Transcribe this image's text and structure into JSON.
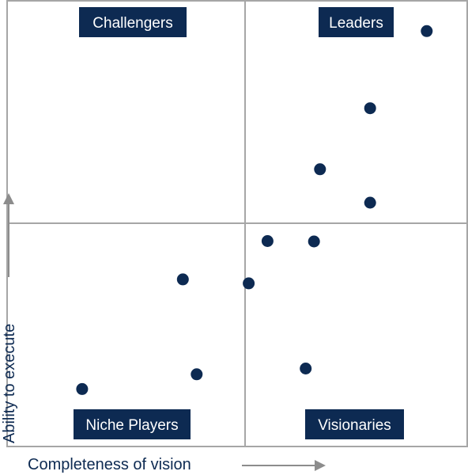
{
  "chart_data": {
    "type": "scatter",
    "title": "",
    "xlabel": "Completeness of vision",
    "ylabel": "Ability to execute",
    "xlim": [
      0,
      10
    ],
    "ylim": [
      0,
      10
    ],
    "quadrants": {
      "top_left": "Challengers",
      "top_right": "Leaders",
      "bottom_left": "Niche Players",
      "bottom_right": "Visionaries"
    },
    "points": [
      {
        "x": 9.12,
        "y": 9.32
      },
      {
        "x": 7.89,
        "y": 7.59
      },
      {
        "x": 6.8,
        "y": 6.22
      },
      {
        "x": 7.89,
        "y": 5.47
      },
      {
        "x": 5.66,
        "y": 4.61
      },
      {
        "x": 6.67,
        "y": 4.6
      },
      {
        "x": 5.25,
        "y": 3.66
      },
      {
        "x": 3.82,
        "y": 3.75
      },
      {
        "x": 6.49,
        "y": 1.75
      },
      {
        "x": 4.12,
        "y": 1.62
      },
      {
        "x": 1.63,
        "y": 1.29
      }
    ],
    "grid": false,
    "colors": {
      "marker": "#0d2a52",
      "label_fill": "#0d2a52",
      "label_text": "#ffffff",
      "frame": "#a6a6a6",
      "arrow": "#8c8c8c"
    }
  }
}
